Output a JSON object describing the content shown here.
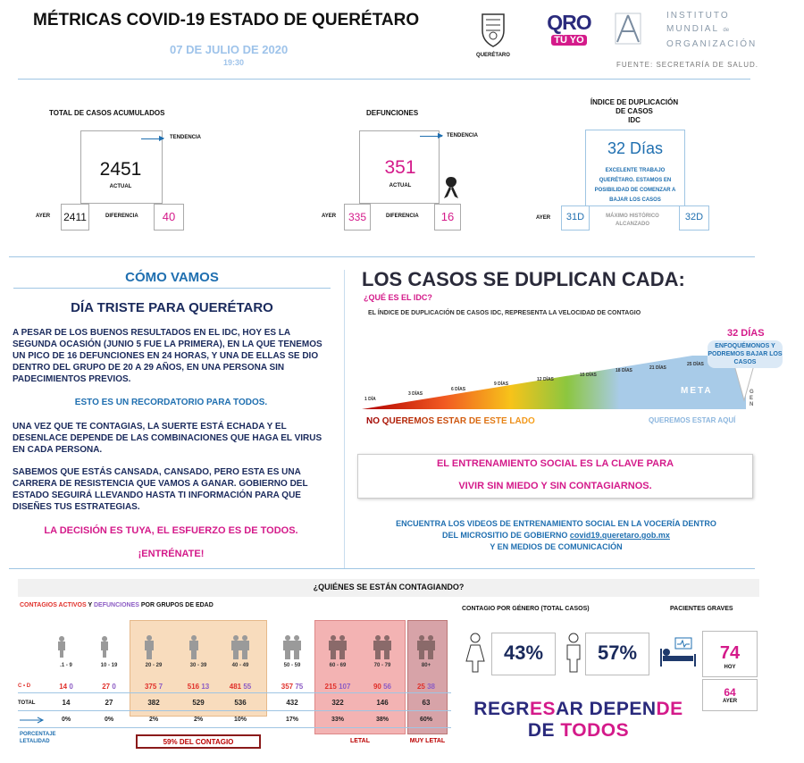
{
  "header": {
    "title": "MÉTRICAS COVID-19 ESTADO DE QUERÉTARO",
    "date": "07 DE JULIO DE 2020",
    "time": "19:30",
    "seal_caption": "QUERÉTARO",
    "qro_logo_top": "QRO",
    "qro_logo_bottom": "TÚ YO",
    "institute_line1": "INSTITUTO",
    "institute_line2": "MUNDIAL",
    "institute_line2_suffix": "de",
    "institute_line3": "ORGANIZACIÓN",
    "source": "FUENTE: SECRETARÍA DE SALUD."
  },
  "metrics": {
    "cases": {
      "label": "TOTAL DE CASOS ACUMULADOS",
      "trend": "TENDENCIA",
      "value": "2451",
      "actual": "ACTUAL",
      "ayer_label": "AYER",
      "ayer": "2411",
      "diff_label": "DIFERENCIA",
      "diff": "40"
    },
    "deaths": {
      "label": "DEFUNCIONES",
      "trend": "TENDENCIA",
      "value": "351",
      "actual": "ACTUAL",
      "ayer_label": "AYER",
      "ayer": "335",
      "diff_label": "DIFERENCIA",
      "diff": "16"
    },
    "idc": {
      "label_line1": "ÍNDICE DE DUPLICACIÓN",
      "label_line2": "DE CASOS",
      "label_line3": "IDC",
      "value": "32 Días",
      "message": "EXCELENTE TRABAJO QUERÉTARO. ESTAMOS EN POSIBILIDAD DE COMENZAR A BAJAR LOS CASOS",
      "ayer_label": "AYER",
      "ayer": "31D",
      "max_label": "MÁXIMO HISTÓRICO ALCANZADO",
      "max": "32D"
    }
  },
  "como_vamos": {
    "heading": "CÓMO VAMOS",
    "subheading": "DÍA TRISTE PARA QUERÉTARO",
    "p1": "A PESAR DE LOS BUENOS RESULTADOS EN EL IDC, HOY ES LA SEGUNDA OCASIÓN (JUNIO 5 FUE LA PRIMERA), EN LA QUE TENEMOS UN PICO DE 16 DEFUNCIONES EN 24 HORAS, Y UNA DE ELLAS SE DIO DENTRO DEL GRUPO DE 20 A 29 AÑOS, EN UNA PERSONA SIN PADECIMIENTOS PREVIOS.",
    "p2": "ESTO ES UN RECORDATORIO PARA TODOS.",
    "p3": "UNA VEZ QUE TE CONTAGIAS, LA SUERTE ESTÁ ECHADA Y EL DESENLACE DEPENDE DE LAS COMBINACIONES QUE HAGA EL VIRUS EN CADA PERSONA.",
    "p4": "SABEMOS QUE ESTÁS CANSADA, CANSADO, PERO ESTA ES UNA CARRERA DE RESISTENCIA QUE VAMOS A GANAR. GOBIERNO DEL ESTADO SEGUIRÁ LLEVANDO HASTA TI INFORMACIÓN PARA QUE DISEÑES TUS ESTRATEGIAS.",
    "p5": "LA DECISIÓN ES TUYA, EL ESFUERZO ES DE TODOS.",
    "p6": "¡ENTRÉNATE!"
  },
  "duplication": {
    "heading": "LOS CASOS SE DUPLICAN CADA:",
    "question": "¿QUÉ ES EL IDC?",
    "definition": "EL ÍNDICE DE DUPLICACIÓN DE CASOS IDC, REPRESENTA LA VELOCIDAD DE CONTAGIO",
    "scale_labels": [
      "1 DÍA",
      "3 DÍAS",
      "6 DÍAS",
      "9 DÍAS",
      "12 DÍAS",
      "15 DÍAS",
      "18 DÍAS",
      "21 DÍAS",
      "25 DÍAS"
    ],
    "current": "32 DÍAS",
    "callout": "ENFOQUÉMONOS Y PODREMOS BAJAR LOS CASOS",
    "meta": "META",
    "gen": "GEN",
    "left_caption": "NO QUEREMOS ESTAR DE ESTE LADO",
    "right_caption": "QUEREMOS ESTAR AQUÍ"
  },
  "training": {
    "line1": "EL ENTRENAMIENTO SOCIAL ES LA CLAVE PARA",
    "line2": "VIVIR SIN MIEDO Y SIN CONTAGIARNOS.",
    "videos1": "ENCUENTRA LOS VIDEOS DE ENTRENAMIENTO SOCIAL EN LA VOCERÍA DENTRO",
    "videos2_prefix": "DEL MICROSITIO DE GOBIERNO ",
    "videos2_link": "covid19.queretaro.gob.mx",
    "videos3": "Y EN MEDIOS DE COMUNICACIÓN"
  },
  "who": {
    "heading": "¿QUIÉNES SE ESTÁN CONTAGIANDO?",
    "subtitle_active": "CONTAGIOS ACTIVOS",
    "subtitle_y": " Y ",
    "subtitle_deaths": "DEFUNCIONES",
    "subtitle_rest": " POR GRUPOS DE EDAD",
    "row_cd": "C • D",
    "row_total": "TOTAL",
    "row_pct_1": "PORCENTAJE",
    "row_pct_2": "LETALIDAD",
    "groups": [
      {
        "age": ".1 - 9",
        "c": "14",
        "d": "0",
        "total": "14",
        "pct": "0%"
      },
      {
        "age": "10 - 19",
        "c": "27",
        "d": "0",
        "total": "27",
        "pct": "0%"
      },
      {
        "age": "20 - 29",
        "c": "375",
        "d": "7",
        "total": "382",
        "pct": "2%"
      },
      {
        "age": "30 - 39",
        "c": "516",
        "d": "13",
        "total": "529",
        "pct": "2%"
      },
      {
        "age": "40 - 49",
        "c": "481",
        "d": "55",
        "total": "536",
        "pct": "10%"
      },
      {
        "age": "50 - 59",
        "c": "357",
        "d": "75",
        "total": "432",
        "pct": "17%"
      },
      {
        "age": "60 - 69",
        "c": "215",
        "d": "107",
        "total": "322",
        "pct": "33%"
      },
      {
        "age": "70 - 79",
        "c": "90",
        "d": "56",
        "total": "146",
        "pct": "38%"
      },
      {
        "age": "80+",
        "c": "25",
        "d": "38",
        "total": "63",
        "pct": "60%"
      }
    ],
    "contagion_note": "59%  DEL CONTAGIO",
    "letal": "LETAL",
    "muy_letal": "MUY LETAL",
    "gender_title": "CONTAGIO POR GÉNERO (TOTAL CASOS)",
    "female": "43%",
    "male": "57%",
    "grave_title": "PACIENTES GRAVES",
    "grave_today": "74",
    "grave_today_label": "HOY",
    "grave_yesterday": "64",
    "grave_yesterday_label": "AYER",
    "slogan": {
      "p1": "REGR",
      "p2": "ES",
      "p3": "AR DEPEN",
      "p4": "DE",
      "p5": "DE ",
      "p6": "TODOS"
    }
  },
  "colors": {
    "navy": "#1a2a5c",
    "blue": "#1f6fb0",
    "magenta": "#d41a8a",
    "orange_band": "#f8dcbd",
    "pink_band": "#f3b3b3",
    "mauve_band": "#d7a3a8"
  }
}
